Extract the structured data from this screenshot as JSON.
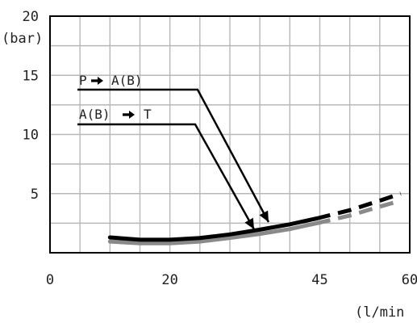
{
  "chart_data": {
    "type": "line",
    "ylabel": "(bar)",
    "xlabel": "(l/min",
    "ylim": [
      0,
      20
    ],
    "xlim": [
      0,
      60
    ],
    "y_ticks": [
      "20",
      "15",
      "10",
      "5"
    ],
    "x_ticks": [
      {
        "value": 0,
        "label": "0"
      },
      {
        "value": 20,
        "label": "20"
      },
      {
        "value": 45,
        "label": "45"
      },
      {
        "value": 60,
        "label": "60"
      }
    ],
    "grid": true,
    "series": [
      {
        "name": "P → A(B)",
        "color": "#000000",
        "solid": [
          [
            10,
            1.3
          ],
          [
            15,
            1.1
          ],
          [
            20,
            1.1
          ],
          [
            25,
            1.25
          ],
          [
            30,
            1.55
          ],
          [
            35,
            1.95
          ],
          [
            40,
            2.4
          ],
          [
            44.5,
            2.9
          ]
        ],
        "dashed": [
          [
            44.5,
            2.9
          ],
          [
            50,
            3.6
          ],
          [
            55,
            4.4
          ],
          [
            58.5,
            5.0
          ]
        ]
      },
      {
        "name": "A(B) → T",
        "color": "#8a8a8a",
        "solid": [
          [
            10,
            0.95
          ],
          [
            15,
            0.8
          ],
          [
            20,
            0.8
          ],
          [
            25,
            0.95
          ],
          [
            30,
            1.25
          ],
          [
            35,
            1.6
          ],
          [
            40,
            2.0
          ],
          [
            44.5,
            2.5
          ]
        ],
        "dashed": [
          [
            44.5,
            2.5
          ],
          [
            50,
            3.15
          ],
          [
            55,
            3.9
          ],
          [
            58.5,
            4.4
          ]
        ]
      }
    ],
    "annotations": [
      {
        "text": "P",
        "arrow_text": "A(B)"
      },
      {
        "text": "A(B)",
        "arrow_text": "T"
      }
    ]
  }
}
